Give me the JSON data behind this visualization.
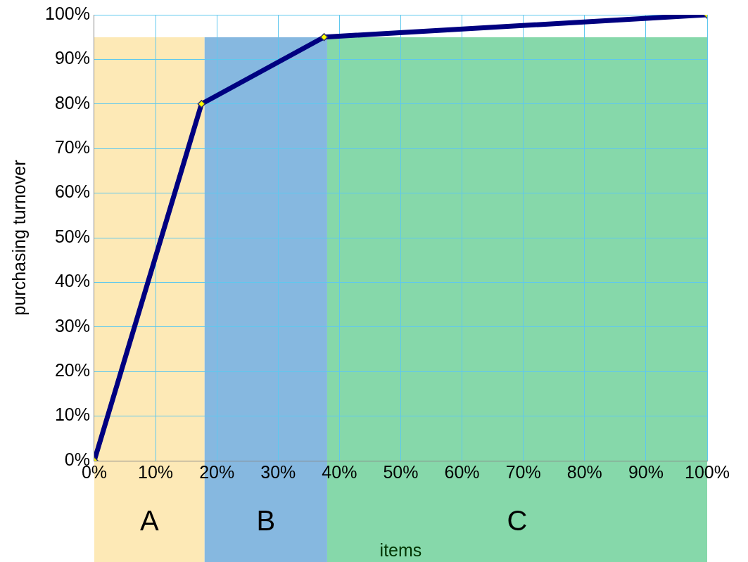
{
  "chart_data": {
    "type": "line",
    "xlabel": "items",
    "ylabel": "purchasing turnover",
    "x": [
      0,
      17.5,
      37.5,
      100
    ],
    "series": [
      {
        "color": "#000080",
        "values": [
          0,
          80,
          95,
          100
        ]
      }
    ],
    "marker": "diamond",
    "grid": true,
    "legend": false,
    "xlim": [
      0,
      100
    ],
    "ylim": [
      0,
      100
    ],
    "xticks": [
      {
        "value": 0,
        "label": "0%"
      },
      {
        "value": 10,
        "label": "10%"
      },
      {
        "value": 20,
        "label": "20%"
      },
      {
        "value": 30,
        "label": "30%"
      },
      {
        "value": 40,
        "label": "40%"
      },
      {
        "value": 50,
        "label": "50%"
      },
      {
        "value": 60,
        "label": "60%"
      },
      {
        "value": 70,
        "label": "70%"
      },
      {
        "value": 80,
        "label": "80%"
      },
      {
        "value": 90,
        "label": "90%"
      },
      {
        "value": 100,
        "label": "100%"
      }
    ],
    "yticks": [
      {
        "value": 0,
        "label": "0%"
      },
      {
        "value": 10,
        "label": "10%"
      },
      {
        "value": 20,
        "label": "20%"
      },
      {
        "value": 30,
        "label": "30%"
      },
      {
        "value": 40,
        "label": "40%"
      },
      {
        "value": 50,
        "label": "50%"
      },
      {
        "value": 60,
        "label": "60%"
      },
      {
        "value": 70,
        "label": "70%"
      },
      {
        "value": 80,
        "label": "80%"
      },
      {
        "value": 90,
        "label": "90%"
      },
      {
        "value": 100,
        "label": "100%"
      }
    ],
    "bands": [
      {
        "axis": "x",
        "from": 0,
        "to": 18,
        "label": "A",
        "color": "#fde9b6"
      },
      {
        "axis": "x",
        "from": 18,
        "to": 38,
        "label": "B",
        "color": "#86b8e0"
      },
      {
        "axis": "x",
        "from": 38,
        "to": 100,
        "label": "C",
        "color": "#86d8aa"
      }
    ]
  }
}
